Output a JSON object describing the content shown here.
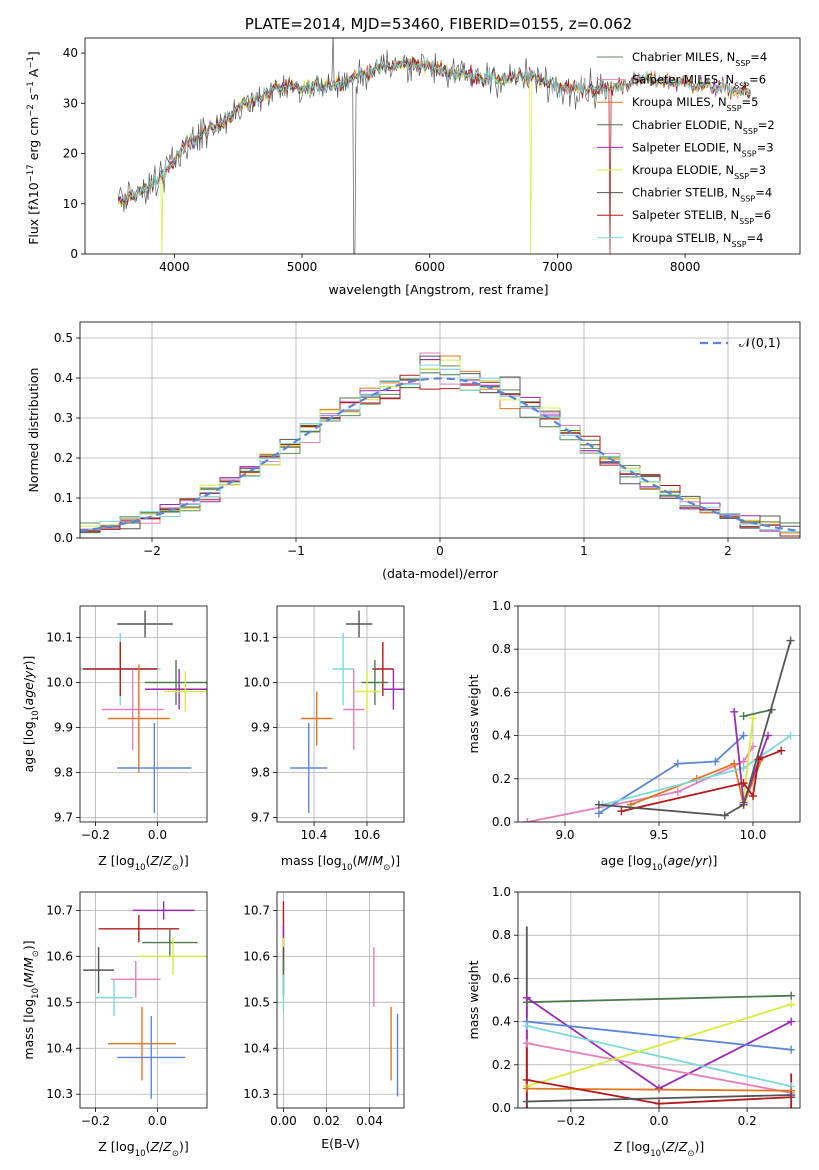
{
  "chart_data": [
    {
      "id": "spectrum",
      "type": "line",
      "title": "PLATE=2014, MJD=53460, FIBERID=0155, z=0.062",
      "xlabel": "wavelength [Angstrom, rest frame]",
      "ylabel": "Flux [f_λ10^-17 erg cm^-2 s^-1 A^-1]",
      "xlim": [
        3300,
        8900
      ],
      "ylim": [
        0,
        43
      ],
      "xticks": [
        4000,
        5000,
        6000,
        7000,
        8000
      ],
      "yticks": [
        0,
        10,
        20,
        30,
        40
      ],
      "grid": false,
      "legend_position": "top-right",
      "continuum_anchors": {
        "x": [
          3550,
          3700,
          3800,
          3950,
          4100,
          4300,
          4500,
          4800,
          5000,
          5300,
          5600,
          5900,
          6200,
          6500,
          6800,
          7100,
          7400,
          7700,
          8000,
          8300,
          8500
        ],
        "y": [
          10,
          12,
          13,
          17,
          22,
          25,
          29,
          33,
          33,
          34,
          37,
          38,
          36,
          35,
          35,
          33,
          33,
          35,
          34,
          33,
          32
        ]
      },
      "series": [
        {
          "label": "Chabrier MILES, N",
          "sub": "SSP",
          "suffix": "=4",
          "color": "#5b8d5b"
        },
        {
          "label": "Salpeter MILES, N",
          "sub": "SSP",
          "suffix": "=6",
          "color": "#e57fbd"
        },
        {
          "label": "Kroupa MILES, N",
          "sub": "SSP",
          "suffix": "=5",
          "color": "#e0761f"
        },
        {
          "label": "Chabrier ELODIE, N",
          "sub": "SSP",
          "suffix": "=2",
          "color": "#4d7a4d"
        },
        {
          "label": "Salpeter ELODIE, N",
          "sub": "SSP",
          "suffix": "=3",
          "color": "#9a2ab5"
        },
        {
          "label": "Kroupa ELODIE, N",
          "sub": "SSP",
          "suffix": "=3",
          "color": "#d8ec3c"
        },
        {
          "label": "Chabrier STELIB, N",
          "sub": "SSP",
          "suffix": "=4",
          "color": "#555555"
        },
        {
          "label": "Salpeter STELIB, N",
          "sub": "SSP",
          "suffix": "=6",
          "color": "#b51a1a"
        },
        {
          "label": "Kroupa STELIB, N",
          "sub": "SSP",
          "suffix": "=4",
          "color": "#7dd9d9"
        }
      ]
    },
    {
      "id": "residuals",
      "type": "area",
      "xlabel": "(data-model)/error",
      "ylabel": "Normed distribution",
      "xlim": [
        -2.5,
        2.5
      ],
      "ylim": [
        0,
        0.54
      ],
      "xticks": [
        -2,
        -1,
        0,
        1,
        2
      ],
      "yticks": [
        0.0,
        0.1,
        0.2,
        0.3,
        0.4,
        0.5
      ],
      "grid": true,
      "reference_curve": {
        "label": "𝒩(0,1)",
        "color": "#5b86d8",
        "style": "dashed"
      },
      "legend_position": "top-right"
    },
    {
      "id": "age_vs_Z",
      "type": "scatter",
      "xlabel": "Z [log10(Z/Z⊙)]",
      "ylabel": "age [log10(age/yr)]",
      "xlim": [
        -0.25,
        0.16
      ],
      "ylim": [
        9.69,
        10.17
      ],
      "xticks": [
        -0.2,
        0.0
      ],
      "yticks": [
        9.7,
        9.8,
        9.9,
        10.0,
        10.1
      ],
      "grid": true,
      "points": [
        {
          "x": -0.04,
          "y": 10.13,
          "xerr": 0.09,
          "yerr": 0.03,
          "color": "#555555"
        },
        {
          "x": -0.12,
          "y": 10.03,
          "xerr": 0.13,
          "yerr": 0.08,
          "color": "#7dd9d9"
        },
        {
          "x": -0.12,
          "y": 10.03,
          "xerr": 0.12,
          "yerr": 0.06,
          "color": "#b51a1a"
        },
        {
          "x": 0.06,
          "y": 10.0,
          "xerr": 0.1,
          "yerr": 0.05,
          "color": "#4d7a4d"
        },
        {
          "x": 0.07,
          "y": 9.985,
          "xerr": 0.11,
          "yerr": 0.045,
          "color": "#9a2ab5"
        },
        {
          "x": 0.09,
          "y": 9.98,
          "xerr": 0.07,
          "yerr": 0.045,
          "color": "#d8ec3c"
        },
        {
          "x": -0.08,
          "y": 9.94,
          "xerr": 0.1,
          "yerr": 0.09,
          "color": "#e57fbd"
        },
        {
          "x": -0.06,
          "y": 9.92,
          "xerr": 0.1,
          "yerr": 0.12,
          "color": "#e0761f"
        },
        {
          "x": -0.01,
          "y": 9.81,
          "xerr": 0.12,
          "yerr": 0.1,
          "color": "#5b86d8"
        }
      ]
    },
    {
      "id": "age_vs_mass",
      "type": "scatter",
      "xlabel": "mass [log10(M/M⊙)]",
      "ylabel": "",
      "xlim": [
        10.26,
        10.74
      ],
      "ylim": [
        9.69,
        10.17
      ],
      "xticks": [
        10.4,
        10.6
      ],
      "yticks": [
        9.7,
        9.8,
        9.9,
        10.0,
        10.1
      ],
      "grid": true,
      "points": [
        {
          "x": 10.57,
          "y": 10.13,
          "xerr": 0.05,
          "yerr": 0.03,
          "color": "#555555"
        },
        {
          "x": 10.51,
          "y": 10.03,
          "xerr": 0.04,
          "yerr": 0.08,
          "color": "#7dd9d9"
        },
        {
          "x": 10.66,
          "y": 10.03,
          "xerr": 0.04,
          "yerr": 0.06,
          "color": "#b51a1a"
        },
        {
          "x": 10.63,
          "y": 10.0,
          "xerr": 0.05,
          "yerr": 0.05,
          "color": "#4d7a4d"
        },
        {
          "x": 10.7,
          "y": 9.985,
          "xerr": 0.04,
          "yerr": 0.045,
          "color": "#9a2ab5"
        },
        {
          "x": 10.6,
          "y": 9.98,
          "xerr": 0.05,
          "yerr": 0.045,
          "color": "#d8ec3c"
        },
        {
          "x": 10.55,
          "y": 9.94,
          "xerr": 0.04,
          "yerr": 0.09,
          "color": "#e57fbd"
        },
        {
          "x": 10.41,
          "y": 9.92,
          "xerr": 0.06,
          "yerr": 0.06,
          "color": "#e0761f"
        },
        {
          "x": 10.38,
          "y": 9.81,
          "xerr": 0.07,
          "yerr": 0.1,
          "color": "#5b86d8"
        }
      ]
    },
    {
      "id": "weight_vs_age",
      "type": "line",
      "xlabel": "age [log10(age/yr)]",
      "ylabel": "mass weight",
      "xlim": [
        8.75,
        10.25
      ],
      "ylim": [
        0,
        1.0
      ],
      "xticks": [
        9.0,
        9.5,
        10.0
      ],
      "yticks": [
        0.0,
        0.2,
        0.4,
        0.6,
        0.8,
        1.0
      ],
      "grid": true,
      "series": [
        {
          "color": "#e57fbd",
          "x": [
            8.8,
            9.6,
            9.95,
            10.0
          ],
          "y": [
            0.0,
            0.14,
            0.28,
            0.35
          ]
        },
        {
          "color": "#5b86d8",
          "x": [
            9.18,
            9.6,
            9.8,
            9.95
          ],
          "y": [
            0.04,
            0.27,
            0.28,
            0.4
          ]
        },
        {
          "color": "#e0761f",
          "x": [
            9.35,
            9.7,
            9.9,
            9.95,
            10.05
          ],
          "y": [
            0.08,
            0.2,
            0.27,
            0.08,
            0.3
          ]
        },
        {
          "color": "#7dd9d9",
          "x": [
            9.2,
            9.95,
            10.2
          ],
          "y": [
            0.08,
            0.25,
            0.4
          ]
        },
        {
          "color": "#d8ec3c",
          "x": [
            9.95,
            10.0
          ],
          "y": [
            0.1,
            0.48
          ]
        },
        {
          "color": "#9a2ab5",
          "x": [
            9.9,
            9.95,
            10.08
          ],
          "y": [
            0.51,
            0.09,
            0.4
          ]
        },
        {
          "color": "#4d7a4d",
          "x": [
            9.95,
            10.1
          ],
          "y": [
            0.49,
            0.52
          ]
        },
        {
          "color": "#b51a1a",
          "x": [
            9.3,
            9.95,
            10.0,
            10.03,
            10.15
          ],
          "y": [
            0.05,
            0.18,
            0.12,
            0.29,
            0.33
          ]
        },
        {
          "color": "#555555",
          "x": [
            9.18,
            9.85,
            9.95,
            10.2
          ],
          "y": [
            0.08,
            0.03,
            0.08,
            0.84
          ]
        }
      ]
    },
    {
      "id": "mass_vs_Z",
      "type": "scatter",
      "xlabel": "Z [log10(Z/Z⊙)]",
      "ylabel": "mass [log10(M/M⊙)]",
      "xlim": [
        -0.25,
        0.16
      ],
      "ylim": [
        10.27,
        10.74
      ],
      "xticks": [
        -0.2,
        0.0
      ],
      "yticks": [
        10.3,
        10.4,
        10.5,
        10.6,
        10.7
      ],
      "grid": true,
      "points": [
        {
          "x": 0.02,
          "y": 10.7,
          "xerr": 0.1,
          "yerr": 0.02,
          "color": "#9a2ab5"
        },
        {
          "x": -0.06,
          "y": 10.66,
          "xerr": 0.13,
          "yerr": 0.03,
          "color": "#b51a1a"
        },
        {
          "x": 0.04,
          "y": 10.63,
          "xerr": 0.09,
          "yerr": 0.03,
          "color": "#4d7a4d"
        },
        {
          "x": 0.05,
          "y": 10.6,
          "xerr": 0.11,
          "yerr": 0.04,
          "color": "#d8ec3c"
        },
        {
          "x": -0.19,
          "y": 10.57,
          "xerr": 0.05,
          "yerr": 0.05,
          "color": "#555555"
        },
        {
          "x": -0.07,
          "y": 10.55,
          "xerr": 0.08,
          "yerr": 0.04,
          "color": "#e57fbd"
        },
        {
          "x": -0.14,
          "y": 10.51,
          "xerr": 0.06,
          "yerr": 0.04,
          "color": "#7dd9d9"
        },
        {
          "x": -0.05,
          "y": 10.41,
          "xerr": 0.11,
          "yerr": 0.08,
          "color": "#e0761f"
        },
        {
          "x": -0.02,
          "y": 10.38,
          "xerr": 0.11,
          "yerr": 0.09,
          "color": "#5b86d8"
        }
      ]
    },
    {
      "id": "mass_vs_ebv",
      "type": "scatter",
      "xlabel": "E(B-V)",
      "ylabel": "",
      "xlim": [
        -0.003,
        0.056
      ],
      "ylim": [
        10.27,
        10.74
      ],
      "xticks": [
        0.0,
        0.02,
        0.04
      ],
      "yticks": [
        10.3,
        10.4,
        10.5,
        10.6,
        10.7
      ],
      "grid": true,
      "points": [
        {
          "x": 0.0,
          "y": 10.66,
          "xerr": 0.0,
          "yerr": 0.06,
          "color": "#b51a1a"
        },
        {
          "x": 0.0,
          "y": 10.62,
          "xerr": 0.0,
          "yerr": 0.05,
          "color": "#9a2ab5"
        },
        {
          "x": 0.0,
          "y": 10.6,
          "xerr": 0.0,
          "yerr": 0.04,
          "color": "#d8ec3c"
        },
        {
          "x": 0.0,
          "y": 10.57,
          "xerr": 0.0,
          "yerr": 0.05,
          "color": "#555555"
        },
        {
          "x": 0.0,
          "y": 10.55,
          "xerr": 0.0,
          "yerr": 0.04,
          "color": "#4d7a4d"
        },
        {
          "x": 0.0,
          "y": 10.52,
          "xerr": 0.0,
          "yerr": 0.04,
          "color": "#7dd9d9"
        },
        {
          "x": 0.042,
          "y": 10.555,
          "xerr": 0.0,
          "yerr": 0.065,
          "color": "#e57fbd"
        },
        {
          "x": 0.05,
          "y": 10.41,
          "xerr": 0.0,
          "yerr": 0.08,
          "color": "#e0761f"
        },
        {
          "x": 0.053,
          "y": 10.385,
          "xerr": 0.0,
          "yerr": 0.09,
          "color": "#5b86d8"
        }
      ]
    },
    {
      "id": "weight_vs_Z",
      "type": "line",
      "xlabel": "Z [log10(Z/Z⊙)]",
      "ylabel": "mass weight",
      "xlim": [
        -0.32,
        0.32
      ],
      "ylim": [
        0,
        1.0
      ],
      "xticks": [
        -0.2,
        0.0,
        0.2
      ],
      "yticks": [
        0.0,
        0.2,
        0.4,
        0.6,
        0.8,
        1.0
      ],
      "grid": true,
      "series": [
        {
          "color": "#4d7a4d",
          "x": [
            -0.3,
            0.3
          ],
          "y": [
            0.49,
            0.52
          ]
        },
        {
          "color": "#9a2ab5",
          "x": [
            -0.3,
            0.0,
            0.3
          ],
          "y": [
            0.51,
            0.09,
            0.4
          ]
        },
        {
          "color": "#5b86d8",
          "x": [
            -0.3,
            0.3
          ],
          "y": [
            0.4,
            0.27
          ]
        },
        {
          "color": "#7dd9d9",
          "x": [
            -0.3,
            0.3
          ],
          "y": [
            0.38,
            0.1
          ]
        },
        {
          "color": "#e57fbd",
          "x": [
            -0.3,
            0.3
          ],
          "y": [
            0.3,
            0.07
          ]
        },
        {
          "color": "#d8ec3c",
          "x": [
            -0.3,
            0.3
          ],
          "y": [
            0.1,
            0.48
          ]
        },
        {
          "color": "#e0761f",
          "x": [
            -0.3,
            0.3
          ],
          "y": [
            0.09,
            0.08
          ]
        },
        {
          "color": "#b51a1a",
          "x": [
            -0.3,
            0.0,
            0.3
          ],
          "y": [
            0.13,
            0.02,
            0.05
          ]
        },
        {
          "color": "#555555",
          "x": [
            -0.3,
            0.3
          ],
          "y": [
            0.03,
            0.06
          ]
        }
      ],
      "stems": [
        {
          "x": -0.3,
          "y0": 0.0,
          "y1": 0.84,
          "color": "#555555"
        },
        {
          "x": -0.3,
          "y0": 0.0,
          "y1": 0.51,
          "color": "#9a2ab5"
        },
        {
          "x": -0.3,
          "y0": 0.0,
          "y1": 0.28,
          "color": "#b51a1a"
        },
        {
          "x": 0.3,
          "y0": 0.0,
          "y1": 0.16,
          "color": "#b51a1a"
        }
      ]
    }
  ]
}
